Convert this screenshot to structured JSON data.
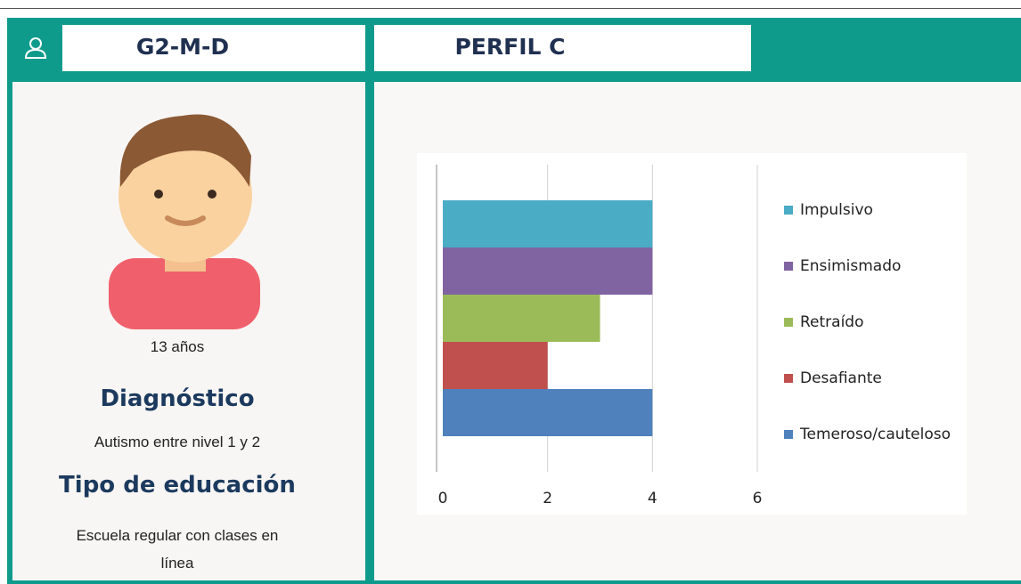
{
  "header": {
    "student_id": "G2-M-D",
    "profile": "PERFIL C"
  },
  "student": {
    "age": "13 años",
    "diagnosis_heading": "Diagnóstico",
    "diagnosis": "Autismo entre nivel 1 y 2",
    "education_heading": "Tipo de educación",
    "education": "Escuela regular con clases en línea"
  },
  "chart_data": {
    "type": "bar",
    "orientation": "horizontal",
    "series": [
      {
        "name": "Impulsivo",
        "color": "#4bacc6",
        "values": [
          4
        ]
      },
      {
        "name": "Ensimismado",
        "color": "#8064a2",
        "values": [
          4
        ]
      },
      {
        "name": "Retraído",
        "color": "#9bbb59",
        "values": [
          3
        ]
      },
      {
        "name": "Desafiante",
        "color": "#c0504d",
        "values": [
          2
        ]
      },
      {
        "name": "Temeroso/cauteloso",
        "color": "#4f81bd",
        "values": [
          4
        ]
      }
    ],
    "xlim": [
      0,
      6
    ],
    "xticks": [
      0,
      2,
      4,
      6
    ],
    "grid": true,
    "legend": "right"
  }
}
